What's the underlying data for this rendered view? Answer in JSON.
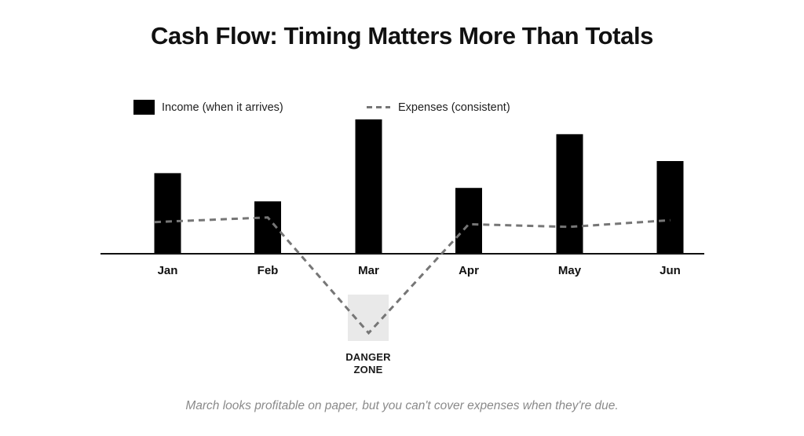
{
  "title": "Cash Flow: Timing Matters More Than Totals",
  "legend": {
    "income_label": "Income (when it arrives)",
    "expenses_label": "Expenses (consistent)"
  },
  "annotation": {
    "danger_line1": "DANGER",
    "danger_line2": "ZONE"
  },
  "caption": "March looks profitable on paper, but you can't cover expenses when they're due.",
  "colors": {
    "bar": "#000000",
    "expense_line": "#767676",
    "danger_zone_fill": "#e9e9e9",
    "axis": "#111111",
    "caption_text": "#8a8a8a"
  },
  "chart_data": {
    "type": "bar",
    "title": "Cash Flow: Timing Matters More Than Totals",
    "categories": [
      "Jan",
      "Feb",
      "Mar",
      "Apr",
      "May",
      "Jun"
    ],
    "series": [
      {
        "name": "Income (when it arrives)",
        "type": "bar",
        "values": [
          60,
          39,
          100,
          49,
          89,
          69
        ]
      },
      {
        "name": "Expenses (consistent)",
        "type": "line",
        "style": "dashed",
        "values": [
          24,
          27,
          -59,
          22,
          20,
          25
        ]
      }
    ],
    "xlabel": "",
    "ylabel": "",
    "ylim": [
      -70,
      105
    ],
    "grid": false,
    "legend_position": "top",
    "units": "relative (no value axis shown)",
    "annotations": [
      {
        "label": "DANGER ZONE",
        "x": "Mar",
        "region": "below-axis"
      }
    ]
  }
}
